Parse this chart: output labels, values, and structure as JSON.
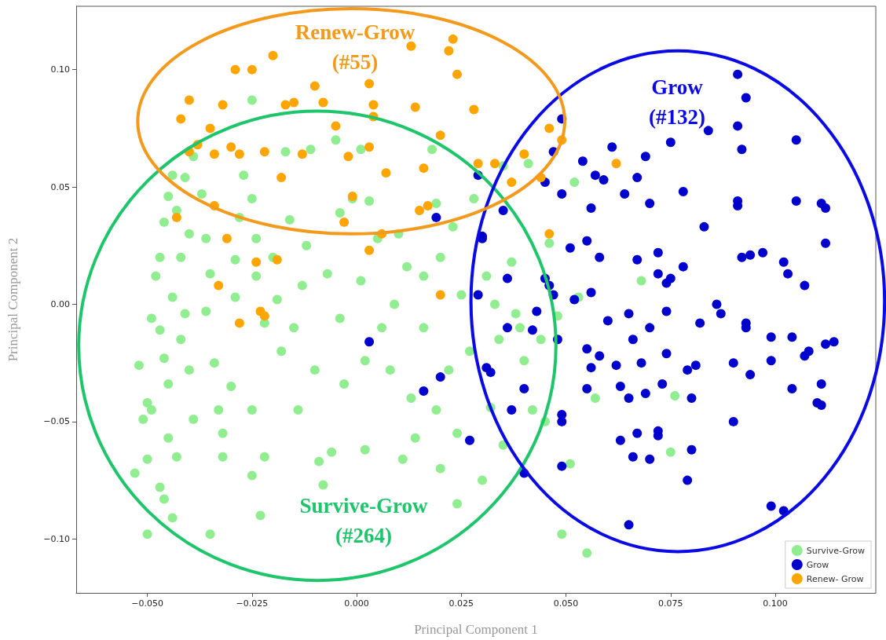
{
  "chart_data": {
    "type": "scatter",
    "xlabel": "Principal Component 1",
    "ylabel": "Principal Component 2",
    "xlim": [
      -0.067,
      0.124
    ],
    "ylim": [
      -0.123,
      0.127
    ],
    "xticks": [
      {
        "value": -0.05,
        "label": "−0.050"
      },
      {
        "value": -0.025,
        "label": "−0.025"
      },
      {
        "value": 0,
        "label": "0.000"
      },
      {
        "value": 0.025,
        "label": "0.025"
      },
      {
        "value": 0.05,
        "label": "0.050"
      },
      {
        "value": 0.075,
        "label": "0.075"
      },
      {
        "value": 0.1,
        "label": "0.100"
      }
    ],
    "yticks": [
      {
        "value": -0.1,
        "label": "−0.10"
      },
      {
        "value": -0.05,
        "label": "−0.05"
      },
      {
        "value": 0,
        "label": "0.00"
      },
      {
        "value": 0.05,
        "label": "0.05"
      },
      {
        "value": 0.1,
        "label": "0.10"
      }
    ],
    "grid": false,
    "legend": "bottom right",
    "marker": "circle",
    "annotations": [
      "Survive-Grow\n(#264)",
      "Grow\n(#132)",
      "Renew-Grow\n(#55)"
    ],
    "series": [
      {
        "name": "Survive-Grow",
        "color": "#90ee90",
        "x": [
          -0.052,
          -0.05,
          -0.051,
          -0.049,
          -0.05,
          -0.053,
          -0.05,
          -0.047,
          -0.046,
          -0.044,
          -0.045,
          -0.045,
          -0.046,
          -0.047,
          -0.049,
          -0.048,
          -0.047,
          -0.046,
          -0.045,
          -0.043,
          -0.044,
          -0.041,
          -0.04,
          -0.042,
          -0.044,
          -0.041,
          -0.042,
          -0.04,
          -0.039,
          -0.043,
          -0.035,
          -0.039,
          -0.037,
          -0.036,
          -0.035,
          -0.036,
          -0.034,
          -0.033,
          -0.032,
          -0.032,
          -0.03,
          -0.029,
          -0.029,
          -0.028,
          -0.027,
          -0.025,
          -0.025,
          -0.024,
          -0.024,
          -0.022,
          -0.025,
          -0.025,
          -0.023,
          -0.022,
          -0.02,
          -0.019,
          -0.018,
          -0.017,
          -0.016,
          -0.015,
          -0.014,
          -0.013,
          -0.012,
          -0.011,
          -0.01,
          -0.009,
          -0.008,
          -0.007,
          -0.006,
          -0.005,
          -0.004,
          -0.004,
          -0.003,
          -0.001,
          0.001,
          0.001,
          0.002,
          0.002,
          0.003,
          0.005,
          0.006,
          0.008,
          0.009,
          0.01,
          0.011,
          0.012,
          0.013,
          0.014,
          0.016,
          0.016,
          0.018,
          0.019,
          0.019,
          0.02,
          0.02,
          0.022,
          0.023,
          0.024,
          0.024,
          0.025,
          0.027,
          0.028,
          0.03,
          0.031,
          0.032,
          0.033,
          0.034,
          0.035,
          0.035,
          0.037,
          0.038,
          0.039,
          0.04,
          0.041,
          0.042,
          0.044,
          0.045,
          0.046,
          0.048,
          0.049,
          0.052,
          0.051,
          0.055,
          0.057,
          0.068,
          0.075,
          0.076,
          0.053
        ],
        "values": [
          -0.026,
          -0.042,
          -0.049,
          -0.045,
          -0.066,
          -0.072,
          -0.098,
          -0.078,
          -0.083,
          -0.091,
          -0.057,
          -0.034,
          -0.023,
          -0.011,
          -0.006,
          0.012,
          0.02,
          0.035,
          0.046,
          0.04,
          0.055,
          0.054,
          0.03,
          0.02,
          0.003,
          -0.004,
          -0.015,
          -0.028,
          -0.049,
          -0.065,
          -0.098,
          0.063,
          0.047,
          0.028,
          0.013,
          -0.003,
          -0.025,
          -0.045,
          -0.055,
          -0.065,
          -0.035,
          0.003,
          0.019,
          0.037,
          0.055,
          0.087,
          0.045,
          0.028,
          0.012,
          -0.008,
          -0.045,
          -0.073,
          -0.09,
          -0.065,
          0.02,
          0.002,
          -0.02,
          0.065,
          0.036,
          -0.01,
          -0.045,
          0.008,
          0.025,
          0.066,
          -0.028,
          -0.067,
          -0.077,
          0.013,
          -0.063,
          0.07,
          0.039,
          -0.006,
          -0.034,
          0.045,
          0.066,
          0.01,
          -0.024,
          -0.062,
          0.044,
          0.028,
          -0.01,
          -0.028,
          0,
          0.03,
          -0.066,
          0.016,
          -0.04,
          -0.057,
          0.012,
          -0.01,
          0.066,
          0.043,
          -0.045,
          -0.07,
          0.02,
          -0.028,
          0.033,
          -0.055,
          -0.085,
          0.004,
          -0.02,
          0.045,
          -0.075,
          0.012,
          -0.044,
          0,
          -0.015,
          0.059,
          -0.06,
          0.018,
          -0.004,
          -0.01,
          -0.024,
          0.06,
          -0.045,
          -0.015,
          -0.05,
          0.026,
          -0.005,
          -0.098,
          0.052,
          -0.068,
          -0.106,
          -0.04,
          0.01,
          -0.063,
          -0.039,
          0.003
        ]
      },
      {
        "name": "Grow",
        "color": "#0000cd",
        "x": [
          0.049,
          0.047,
          0.029,
          0.019,
          0.035,
          0.045,
          0.054,
          0.061,
          0.057,
          0.059,
          0.049,
          0.056,
          0.064,
          0.067,
          0.069,
          0.075,
          0.078,
          0.07,
          0.084,
          0.091,
          0.092,
          0.091,
          0.093,
          0.105,
          0.091,
          0.091,
          0.105,
          0.111,
          0.112,
          0.083,
          0.112,
          0.03,
          0.03,
          0.051,
          0.055,
          0.058,
          0.067,
          0.072,
          0.072,
          0.075,
          0.078,
          0.074,
          0.092,
          0.094,
          0.097,
          0.102,
          0.103,
          0.107,
          0.036,
          0.029,
          0.045,
          0.046,
          0.047,
          0.056,
          0.052,
          0.043,
          0.036,
          0.042,
          0.048,
          0.06,
          0.065,
          0.066,
          0.07,
          0.074,
          0.082,
          0.086,
          0.087,
          0.093,
          0.093,
          0.099,
          0.104,
          0.112,
          0.114,
          0.003,
          0.055,
          0.056,
          0.058,
          0.062,
          0.068,
          0.074,
          0.079,
          0.081,
          0.09,
          0.094,
          0.099,
          0.107,
          0.108,
          0.031,
          0.032,
          0.02,
          0.016,
          0.04,
          0.055,
          0.063,
          0.065,
          0.069,
          0.073,
          0.08,
          0.104,
          0.111,
          0.027,
          0.037,
          0.049,
          0.049,
          0.063,
          0.067,
          0.072,
          0.072,
          0.066,
          0.07,
          0.08,
          0.079,
          0.09,
          0.049,
          0.04,
          0.065,
          0.099,
          0.102,
          0.11,
          0.111
        ],
        "values": [
          0.079,
          0.065,
          0.055,
          0.037,
          0.04,
          0.052,
          0.061,
          0.067,
          0.055,
          0.053,
          0.047,
          0.041,
          0.047,
          0.054,
          0.063,
          0.069,
          0.048,
          0.043,
          0.074,
          0.076,
          0.066,
          0.098,
          0.088,
          0.07,
          0.044,
          0.042,
          0.044,
          0.043,
          0.041,
          0.033,
          0.026,
          0.029,
          0.028,
          0.024,
          0.027,
          0.02,
          0.019,
          0.022,
          0.013,
          0.011,
          0.016,
          0.009,
          0.02,
          0.021,
          0.022,
          0.018,
          0.013,
          0.008,
          0.011,
          0.004,
          0.011,
          0.008,
          0.004,
          0.005,
          0.002,
          -0.003,
          -0.01,
          -0.011,
          -0.015,
          -0.007,
          -0.004,
          -0.015,
          -0.01,
          -0.003,
          -0.008,
          0,
          -0.004,
          -0.008,
          -0.01,
          -0.014,
          -0.014,
          -0.017,
          -0.016,
          -0.016,
          -0.019,
          -0.027,
          -0.022,
          -0.026,
          -0.025,
          -0.021,
          -0.028,
          -0.026,
          -0.025,
          -0.03,
          -0.024,
          -0.022,
          -0.02,
          -0.027,
          -0.029,
          -0.031,
          -0.037,
          -0.036,
          -0.036,
          -0.035,
          -0.04,
          -0.038,
          -0.034,
          -0.04,
          -0.036,
          -0.034,
          -0.058,
          -0.045,
          -0.047,
          -0.05,
          -0.058,
          -0.055,
          -0.054,
          -0.056,
          -0.065,
          -0.066,
          -0.062,
          -0.075,
          -0.05,
          -0.069,
          -0.072,
          -0.094,
          -0.086,
          -0.088,
          -0.042,
          -0.043
        ]
      },
      {
        "name": "Renew- Grow",
        "color": "#ffa500",
        "x": [
          -0.04,
          -0.035,
          -0.042,
          -0.038,
          -0.032,
          -0.029,
          -0.025,
          -0.02,
          -0.015,
          -0.017,
          -0.01,
          -0.008,
          -0.005,
          0.003,
          0.004,
          0.004,
          0.013,
          0.023,
          0.022,
          0.024,
          0.014,
          0.02,
          0.028,
          0.029,
          0.033,
          0.04,
          0.046,
          0.049,
          0.044,
          0.037,
          0.016,
          0.007,
          0.003,
          -0.002,
          -0.013,
          -0.022,
          -0.028,
          -0.034,
          -0.04,
          -0.03,
          -0.018,
          0.015,
          0.017,
          0.006,
          -0.001,
          -0.003,
          0.003,
          -0.034,
          -0.043,
          -0.031,
          -0.024,
          -0.019,
          -0.033,
          -0.028,
          -0.023,
          -0.022,
          0.02,
          0.046,
          0.062
        ],
        "values": [
          0.087,
          0.075,
          0.079,
          0.068,
          0.085,
          0.1,
          0.1,
          0.106,
          0.086,
          0.085,
          0.093,
          0.086,
          0.076,
          0.094,
          0.085,
          0.08,
          0.11,
          0.113,
          0.108,
          0.098,
          0.084,
          0.072,
          0.083,
          0.06,
          0.06,
          0.064,
          0.075,
          0.07,
          0.054,
          0.052,
          0.058,
          0.056,
          0.067,
          0.063,
          0.064,
          0.065,
          0.064,
          0.064,
          0.065,
          0.067,
          0.054,
          0.04,
          0.042,
          0.03,
          0.046,
          0.035,
          0.023,
          0.042,
          0.037,
          0.028,
          0.018,
          0.019,
          0.008,
          -0.008,
          -0.003,
          -0.005,
          0.004,
          0.03,
          0.06
        ]
      }
    ]
  }
}
